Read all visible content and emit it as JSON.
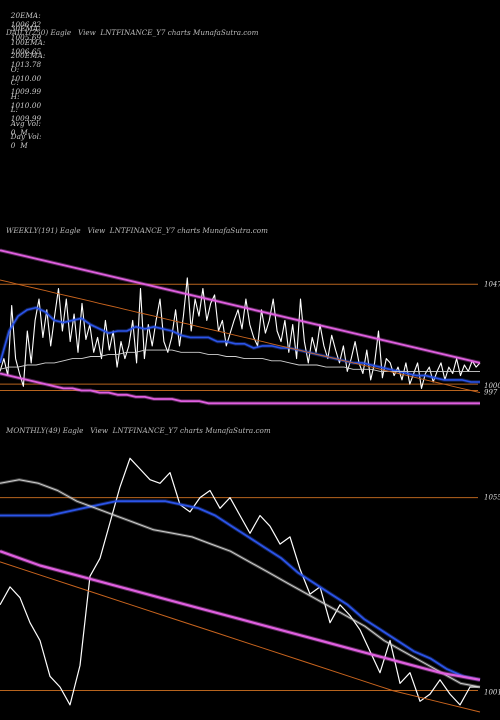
{
  "header": {
    "row1": [
      {
        "label": "20EMA:",
        "value": "1006.82"
      },
      {
        "label": "100EMA:",
        "value": "1006.65"
      },
      {
        "label": "O:",
        "value": "1010.00"
      },
      {
        "label": "H:",
        "value": "1010.00"
      },
      {
        "label": "Avg Vol:",
        "value": "0  M"
      }
    ],
    "row2": [
      {
        "label": "30EMA:",
        "value": "1005.69"
      },
      {
        "label": "200EMA:",
        "value": "1013.78"
      },
      {
        "label": "C:",
        "value": "1009.99"
      },
      {
        "label": "L:",
        "value": "1009.99"
      },
      {
        "label": "Day Vol:",
        "value": "0  M"
      }
    ]
  },
  "panels": {
    "daily": {
      "title": "DAILY(250) Eagle   View  LNTFINANCE_Y7 charts MunafaSutra.com"
    },
    "weekly": {
      "title": "WEEKLY(191) Eagle   View  LNTFINANCE_Y7 charts MunafaSutra.com",
      "price_labels": [
        "1047",
        "1000",
        "997"
      ]
    },
    "monthly": {
      "title": "MONTHLY(49) Eagle   View  LNTFINANCE_Y7 charts MunafaSutra.com",
      "price_labels": [
        "1055",
        "1001"
      ]
    }
  },
  "colors": {
    "background": "#000000",
    "price": "#ffffff",
    "ema_blue": "#2b54e8",
    "ema_magenta": "#e060e0",
    "ema_orange": "#c8641e",
    "ema_white": "#cfcfcf",
    "level_line": "#b8641e"
  },
  "chart_data": [
    {
      "type": "line",
      "title": "DAILY(250) Eagle   View  LNTFINANCE_Y7 charts MunafaSutra.com",
      "series": []
    },
    {
      "type": "line",
      "title": "WEEKLY(191) Eagle   View  LNTFINANCE_Y7 charts MunafaSutra.com",
      "ylim": [
        985,
        1065
      ],
      "levels": [
        1047,
        1000,
        997
      ],
      "series": [
        {
          "key": "price",
          "values": [
            1006,
            1012,
            1004,
            1037,
            1012,
            1005,
            999,
            1025,
            1010,
            1030,
            1040,
            1022,
            1035,
            1018,
            1032,
            1045,
            1025,
            1040,
            1020,
            1033,
            1015,
            1038,
            1021,
            1028,
            1015,
            1022,
            1012,
            1030,
            1016,
            1025,
            1008,
            1020,
            1012,
            1018,
            1030,
            1010,
            1045,
            1012,
            1028,
            1018,
            1030,
            1040,
            1020,
            1015,
            1022,
            1035,
            1018,
            1032,
            1050,
            1025,
            1040,
            1032,
            1045,
            1030,
            1038,
            1042,
            1025,
            1030,
            1018,
            1024,
            1030,
            1035,
            1026,
            1040,
            1028,
            1022,
            1018,
            1035,
            1024,
            1030,
            1040,
            1025,
            1020,
            1030,
            1015,
            1028,
            1012,
            1040,
            1020,
            1010,
            1022,
            1015,
            1028,
            1018,
            1012,
            1023,
            1016,
            1010,
            1018,
            1006,
            1012,
            1020,
            1010,
            1005,
            1016,
            1002,
            1010,
            1025,
            1003,
            1012,
            1010,
            1004,
            1008,
            1002,
            1010,
            1000,
            1005,
            1010,
            998,
            1005,
            1008,
            1001,
            1006,
            1010,
            1002,
            1008,
            1005,
            1012,
            1004,
            1009,
            1006,
            1011,
            1008,
            1010
          ]
        },
        {
          "key": "ema_short",
          "values": [
            1010,
            1025,
            1032,
            1035,
            1036,
            1034,
            1030,
            1029,
            1030,
            1031,
            1028,
            1026,
            1024,
            1025,
            1025,
            1027,
            1026,
            1027,
            1026,
            1025,
            1023,
            1022,
            1022,
            1022,
            1020,
            1020,
            1019,
            1019,
            1017,
            1018,
            1018,
            1017,
            1017,
            1016,
            1015,
            1014,
            1013,
            1012,
            1011,
            1010,
            1010,
            1009,
            1008,
            1007,
            1006,
            1005,
            1004,
            1004,
            1003,
            1002,
            1002,
            1002,
            1001,
            1001
          ]
        },
        {
          "key": "ema_long",
          "values": [
            1007,
            1008,
            1008,
            1009,
            1009,
            1010,
            1010,
            1011,
            1012,
            1012,
            1013,
            1013,
            1014,
            1014,
            1015,
            1015,
            1016,
            1016,
            1016,
            1016,
            1015,
            1015,
            1015,
            1014,
            1014,
            1013,
            1013,
            1012,
            1012,
            1012,
            1011,
            1011,
            1010,
            1009,
            1009,
            1009,
            1008,
            1008,
            1008,
            1007,
            1007,
            1007,
            1006,
            1006,
            1006,
            1006,
            1006,
            1006,
            1006,
            1006,
            1006,
            1006,
            1006,
            1006
          ]
        },
        {
          "key": "ema_200",
          "values": [
            1049,
            1048,
            1047,
            1046,
            1045,
            1044,
            1043,
            1042,
            1041,
            1040,
            1039,
            1038,
            1037,
            1036,
            1035,
            1034,
            1033,
            1032,
            1031,
            1030,
            1029,
            1028,
            1027,
            1026,
            1025,
            1024,
            1023,
            1022,
            1021,
            1020,
            1019,
            1018,
            1017,
            1016,
            1015,
            1014,
            1013,
            1012,
            1011,
            1010,
            1009,
            1008,
            1007,
            1006,
            1005,
            1004,
            1003,
            1002,
            1001,
            1000,
            999,
            998,
            997,
            996
          ]
        },
        {
          "key": "env_upper",
          "values": [
            1063,
            1062,
            1061,
            1060,
            1059,
            1058,
            1057,
            1056,
            1055,
            1054,
            1053,
            1052,
            1051,
            1050,
            1049,
            1048,
            1047,
            1046,
            1045,
            1044,
            1043,
            1042,
            1041,
            1040,
            1039,
            1038,
            1037,
            1036,
            1035,
            1034,
            1033,
            1032,
            1031,
            1030,
            1029,
            1028,
            1027,
            1026,
            1025,
            1024,
            1023,
            1022,
            1021,
            1020,
            1019,
            1018,
            1017,
            1016,
            1015,
            1014,
            1013,
            1012,
            1011,
            1010
          ]
        },
        {
          "key": "env_lower",
          "values": [
            1005,
            1004,
            1003,
            1002,
            1001,
            1000,
            999,
            998,
            998,
            997,
            997,
            996,
            996,
            995,
            995,
            994,
            994,
            993,
            993,
            993,
            992,
            992,
            992,
            991,
            991,
            991,
            991,
            991,
            991,
            991,
            991,
            991,
            991,
            991,
            991,
            991,
            991,
            991,
            991,
            991,
            991,
            991,
            991,
            991,
            991,
            991,
            991,
            991,
            991,
            991,
            991,
            991,
            991,
            991
          ]
        }
      ]
    },
    {
      "type": "line",
      "title": "MONTHLY(49) Eagle   View  LNTFINANCE_Y7 charts MunafaSutra.com",
      "ylim": [
        995,
        1070
      ],
      "levels": [
        1055,
        1001
      ],
      "series": [
        {
          "key": "price",
          "values": [
            1025,
            1030,
            1027,
            1020,
            1015,
            1005,
            1002,
            997,
            1008,
            1033,
            1038,
            1048,
            1058,
            1066,
            1063,
            1060,
            1059,
            1062,
            1053,
            1051,
            1055,
            1057,
            1052,
            1055,
            1050,
            1045,
            1050,
            1047,
            1042,
            1044,
            1035,
            1028,
            1030,
            1020,
            1025,
            1022,
            1018,
            1012,
            1006,
            1015,
            1003,
            1006,
            998,
            1000,
            1004,
            1000,
            997,
            1002,
            1002
          ]
        },
        {
          "key": "ema_blue",
          "values": [
            1050,
            1050,
            1050,
            1050,
            1051,
            1052,
            1053,
            1054,
            1054,
            1054,
            1054,
            1053,
            1052,
            1050,
            1047,
            1044,
            1041,
            1038,
            1034,
            1031,
            1028,
            1025,
            1021,
            1018,
            1015,
            1012,
            1010,
            1007,
            1005,
            1004
          ]
        },
        {
          "key": "ema_gray_upper",
          "values": [
            1059,
            1060,
            1059,
            1057,
            1054,
            1052,
            1050,
            1048,
            1046,
            1045,
            1044,
            1042,
            1040,
            1037,
            1034,
            1031,
            1028,
            1025,
            1022,
            1019,
            1015,
            1012,
            1009,
            1006,
            1003,
            1002
          ]
        },
        {
          "key": "ema_magenta",
          "values": [
            1040,
            1036,
            1033,
            1030,
            1027,
            1024,
            1021,
            1018,
            1015,
            1012,
            1009,
            1006,
            1004
          ]
        },
        {
          "key": "ema_orange",
          "values": [
            1037,
            1033,
            1029,
            1025,
            1021,
            1017,
            1013,
            1009,
            1005,
            1001,
            998,
            995
          ]
        }
      ]
    }
  ]
}
